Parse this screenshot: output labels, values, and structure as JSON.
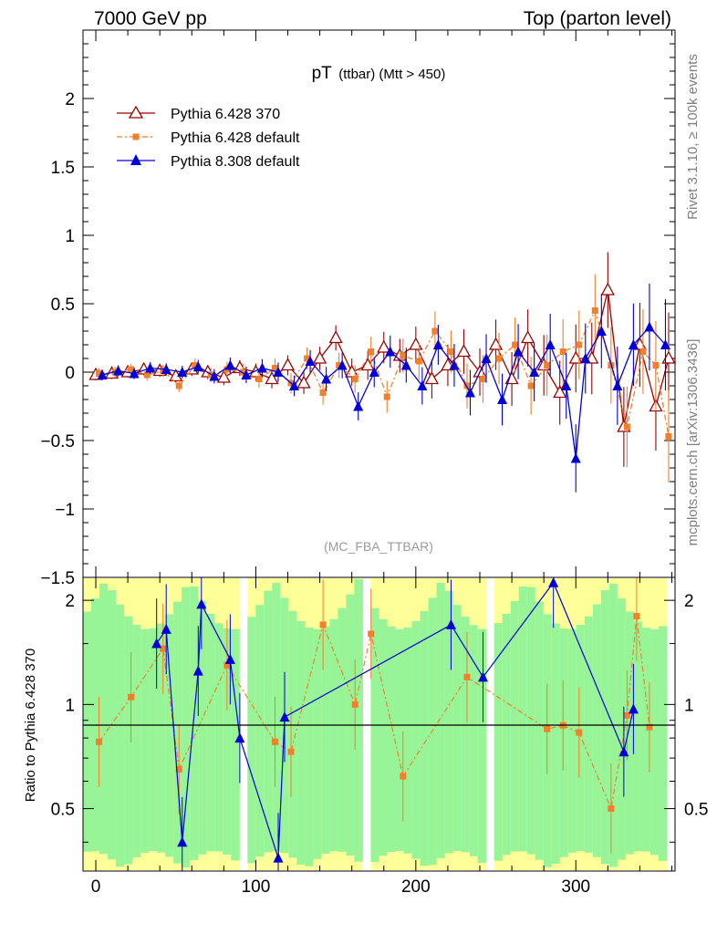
{
  "header": {
    "left": "7000 GeV pp",
    "right": "Top (parton level)"
  },
  "side_labels": {
    "rivet": "Rivet 3.1.10, ≥ 100k events",
    "mcplots": "mcplots.cern.ch [arXiv:1306.3436]"
  },
  "title": {
    "main": "pT",
    "sub": "(ttbar) (Mtt > 450)"
  },
  "analysis_label": "(MC_FBA_TTBAR)",
  "colors": {
    "ref": "#9a0000",
    "p6default": "#f47f2a",
    "p8": "#0000d9",
    "band_green": "#97f597",
    "band_yellow": "#ffff99"
  },
  "chart_data": [
    {
      "type": "line",
      "panel": "main",
      "xlim": [
        -8,
        362
      ],
      "ylim": [
        -1.5,
        2.5
      ],
      "yticks": [
        -1.5,
        -1,
        -0.5,
        0,
        0.5,
        1,
        1.5,
        2
      ],
      "ytick_labels": [
        "−1.5",
        "−1",
        "−0.5",
        "0",
        "0.5",
        "1",
        "1.5",
        "2"
      ],
      "legend_position": "top-left",
      "series": [
        {
          "name": "Pythia 6.428 370",
          "marker": "open-triangle",
          "key": "ref",
          "x": [
            0,
            10,
            20,
            30,
            40,
            50,
            60,
            70,
            80,
            90,
            100,
            110,
            120,
            130,
            140,
            150,
            160,
            170,
            180,
            190,
            200,
            210,
            220,
            230,
            240,
            250,
            260,
            270,
            280,
            290,
            300,
            310,
            320,
            330,
            340,
            350,
            358
          ],
          "y": [
            -0.02,
            -0.01,
            0.0,
            0.02,
            0.01,
            -0.03,
            0.02,
            0.0,
            -0.04,
            0.03,
            0.0,
            -0.05,
            0.05,
            -0.08,
            0.1,
            0.25,
            0.0,
            0.05,
            0.18,
            0.12,
            0.2,
            -0.05,
            0.05,
            0.15,
            0.0,
            0.2,
            -0.05,
            0.25,
            0.05,
            -0.15,
            0.1,
            0.1,
            0.6,
            -0.4,
            0.2,
            -0.25,
            0.1
          ]
        },
        {
          "name": "Pythia 6.428 default",
          "marker": "square",
          "key": "p6default",
          "x": [
            2,
            12,
            22,
            32,
            42,
            52,
            62,
            72,
            82,
            92,
            102,
            112,
            122,
            132,
            142,
            152,
            162,
            172,
            182,
            192,
            202,
            212,
            222,
            232,
            242,
            252,
            262,
            272,
            282,
            292,
            302,
            312,
            322,
            332,
            342,
            350,
            358
          ],
          "y": [
            -0.01,
            0.0,
            0.02,
            -0.02,
            0.01,
            -0.1,
            0.05,
            -0.02,
            0.02,
            0.0,
            -0.05,
            0.03,
            -0.08,
            0.1,
            -0.15,
            0.05,
            -0.05,
            0.15,
            -0.18,
            0.12,
            0.08,
            0.3,
            0.15,
            -0.1,
            -0.05,
            0.1,
            0.2,
            -0.1,
            0.05,
            0.15,
            0.2,
            0.45,
            0.05,
            -0.4,
            0.15,
            0.05,
            -0.47
          ]
        },
        {
          "name": "Pythia 8.308 default",
          "marker": "filled-triangle",
          "key": "p8",
          "x": [
            4,
            14,
            24,
            34,
            44,
            54,
            64,
            74,
            84,
            94,
            104,
            114,
            124,
            134,
            144,
            154,
            164,
            174,
            184,
            194,
            204,
            214,
            224,
            234,
            244,
            254,
            264,
            274,
            284,
            294,
            300,
            306,
            316,
            326,
            336,
            346,
            356
          ],
          "y": [
            -0.02,
            0.01,
            -0.01,
            0.03,
            0.02,
            0.0,
            0.04,
            -0.03,
            0.05,
            -0.02,
            0.03,
            0.0,
            -0.1,
            0.08,
            -0.05,
            0.05,
            -0.25,
            0.0,
            0.15,
            0.05,
            -0.1,
            0.2,
            0.05,
            -0.15,
            0.1,
            -0.2,
            0.15,
            0.0,
            0.2,
            -0.1,
            -0.63,
            0.1,
            0.3,
            -0.1,
            0.2,
            0.33,
            0.2
          ]
        }
      ]
    },
    {
      "type": "line",
      "panel": "ratio",
      "ylabel": "Ratio to Pythia 6.428 370",
      "xlim": [
        -8,
        362
      ],
      "ylim": [
        0.33,
        2.33
      ],
      "yscale": "log",
      "yticks": [
        0.5,
        1,
        2
      ],
      "ytick_labels": [
        "0.5",
        "1",
        "2"
      ],
      "xticks": [
        0,
        100,
        200,
        300
      ],
      "xtick_labels": [
        "0",
        "100",
        "200",
        "300"
      ],
      "series": [
        {
          "name": "Pythia 6.428 default",
          "x": [
            2,
            22,
            42,
            52,
            82,
            112,
            122,
            142,
            162,
            172,
            192,
            232,
            282,
            292,
            302,
            322,
            332,
            338,
            346
          ],
          "y": [
            0.78,
            1.05,
            1.45,
            0.65,
            1.3,
            0.78,
            0.73,
            1.7,
            1.0,
            1.6,
            0.62,
            1.2,
            0.85,
            0.87,
            0.83,
            0.5,
            0.93,
            1.8,
            0.86
          ]
        },
        {
          "name": "Pythia 8.308 default",
          "x": [
            38,
            44,
            54,
            64,
            66,
            84,
            90,
            114,
            118,
            222,
            242,
            286,
            330,
            336
          ],
          "y": [
            1.5,
            1.65,
            0.4,
            1.25,
            1.95,
            1.35,
            0.8,
            0.36,
            0.92,
            1.7,
            1.2,
            2.25,
            0.73,
            0.97
          ]
        }
      ]
    }
  ]
}
